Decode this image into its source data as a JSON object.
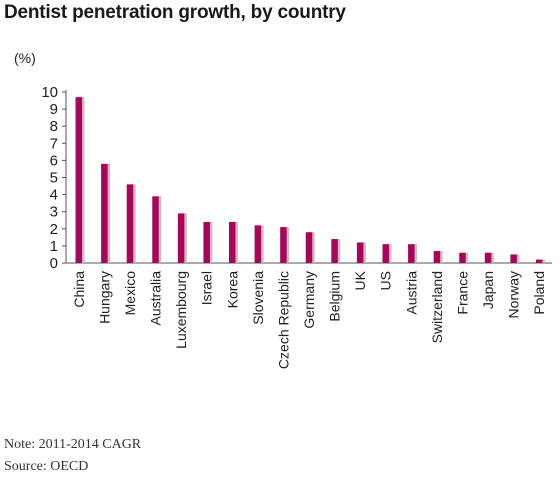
{
  "chart_data": {
    "type": "bar",
    "title": "Dentist penetration growth, by country",
    "ylabel": "(%)",
    "xlabel": "",
    "ylim": [
      0,
      10
    ],
    "yticks": [
      0,
      1,
      2,
      3,
      4,
      5,
      6,
      7,
      8,
      9,
      10
    ],
    "grid": false,
    "categories": [
      "China",
      "Hungary",
      "Mexico",
      "Australia",
      "Luxembourg",
      "Israel",
      "Korea",
      "Slovenia",
      "Czech Republic",
      "Germany",
      "Belgium",
      "UK",
      "US",
      "Austria",
      "Switzerland",
      "France",
      "Japan",
      "Norway",
      "Poland"
    ],
    "values": [
      9.7,
      5.8,
      4.6,
      3.9,
      2.9,
      2.4,
      2.4,
      2.2,
      2.1,
      1.8,
      1.4,
      1.2,
      1.1,
      1.1,
      0.7,
      0.6,
      0.6,
      0.5,
      0.2
    ],
    "colors": {
      "bar": "#a3085a",
      "bar_shadow": "#d9b3c8",
      "axis": "#555555"
    }
  },
  "notes": {
    "note": "Note: 2011-2014 CAGR",
    "source": "Source: OECD"
  }
}
